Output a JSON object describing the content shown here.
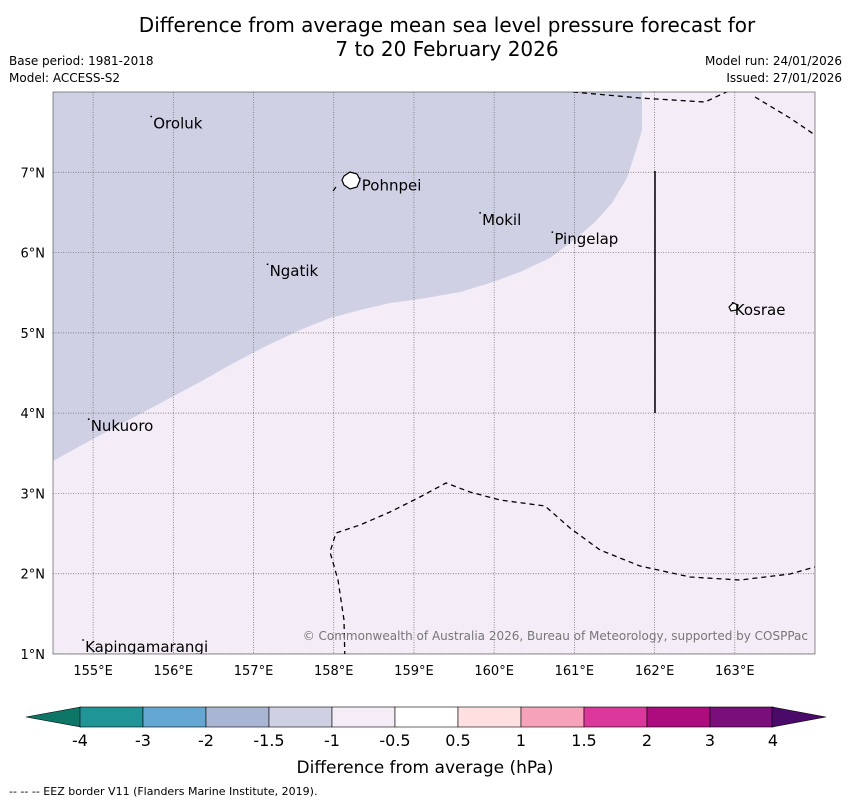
{
  "title": {
    "line1": "Difference from average mean sea level pressure forecast for",
    "line2": "7 to 20 February 2026"
  },
  "meta": {
    "base_period": "Base period: 1981-2018",
    "model": "Model: ACCESS-S2",
    "model_run": "Model run: 24/01/2026",
    "issued": "Issued: 27/01/2026"
  },
  "map": {
    "lon_range": [
      154.5,
      164.0
    ],
    "lat_range": [
      1.0,
      8.0
    ],
    "lon_ticks": [
      {
        "value": 155,
        "label": "155°E"
      },
      {
        "value": 156,
        "label": "156°E"
      },
      {
        "value": 157,
        "label": "157°E"
      },
      {
        "value": 158,
        "label": "158°E"
      },
      {
        "value": 159,
        "label": "159°E"
      },
      {
        "value": 160,
        "label": "160°E"
      },
      {
        "value": 161,
        "label": "161°E"
      },
      {
        "value": 162,
        "label": "162°E"
      },
      {
        "value": 163,
        "label": "163°E"
      }
    ],
    "lat_ticks": [
      {
        "value": 1,
        "label": "1°N"
      },
      {
        "value": 2,
        "label": "2°N"
      },
      {
        "value": 3,
        "label": "3°N"
      },
      {
        "value": 4,
        "label": "4°N"
      },
      {
        "value": 5,
        "label": "5°N"
      },
      {
        "value": 6,
        "label": "6°N"
      },
      {
        "value": 7,
        "label": "7°N"
      }
    ],
    "places": [
      {
        "name": "Oroluk",
        "lon": 155.75,
        "lat": 7.62
      },
      {
        "name": "Pohnpei",
        "lon": 158.35,
        "lat": 6.85
      },
      {
        "name": "Mokil",
        "lon": 159.85,
        "lat": 6.42
      },
      {
        "name": "Pingelap",
        "lon": 160.75,
        "lat": 6.18
      },
      {
        "name": "Ngatik",
        "lon": 157.2,
        "lat": 5.78
      },
      {
        "name": "Kosrae",
        "lon": 163.0,
        "lat": 5.3
      },
      {
        "name": "Nukuoro",
        "lon": 154.97,
        "lat": 3.85
      },
      {
        "name": "Kapingamarangi",
        "lon": 154.9,
        "lat": 1.1
      }
    ],
    "region_fills": [
      {
        "category": "-1.5 to -1",
        "color": "#cfd0e4"
      },
      {
        "category": "-1 to -0.5",
        "color": "#f4ecf6"
      }
    ],
    "copyright": "© Commonwealth of Australia 2026, Bureau of Meteorology, supported by COSPPac"
  },
  "colorbar": {
    "xlabel": "Difference from average (hPa)",
    "colors": [
      "#0e7667",
      "#1f9598",
      "#64a7d2",
      "#a8b6d4",
      "#cfd0e4",
      "#f4ecf6",
      "#ffffff",
      "#ffe0e1",
      "#f6a3b9",
      "#dc379b",
      "#ad0c7f",
      "#7a0e7a",
      "#4a0a6a"
    ],
    "tick_labels": [
      "-4",
      "-3",
      "-2",
      "-1.5",
      "-1",
      "-0.5",
      "0.5",
      "1",
      "1.5",
      "2",
      "3",
      "4"
    ]
  },
  "footer": "--  --  -- EEZ border V11 (Flanders Marine Institute, 2019)."
}
